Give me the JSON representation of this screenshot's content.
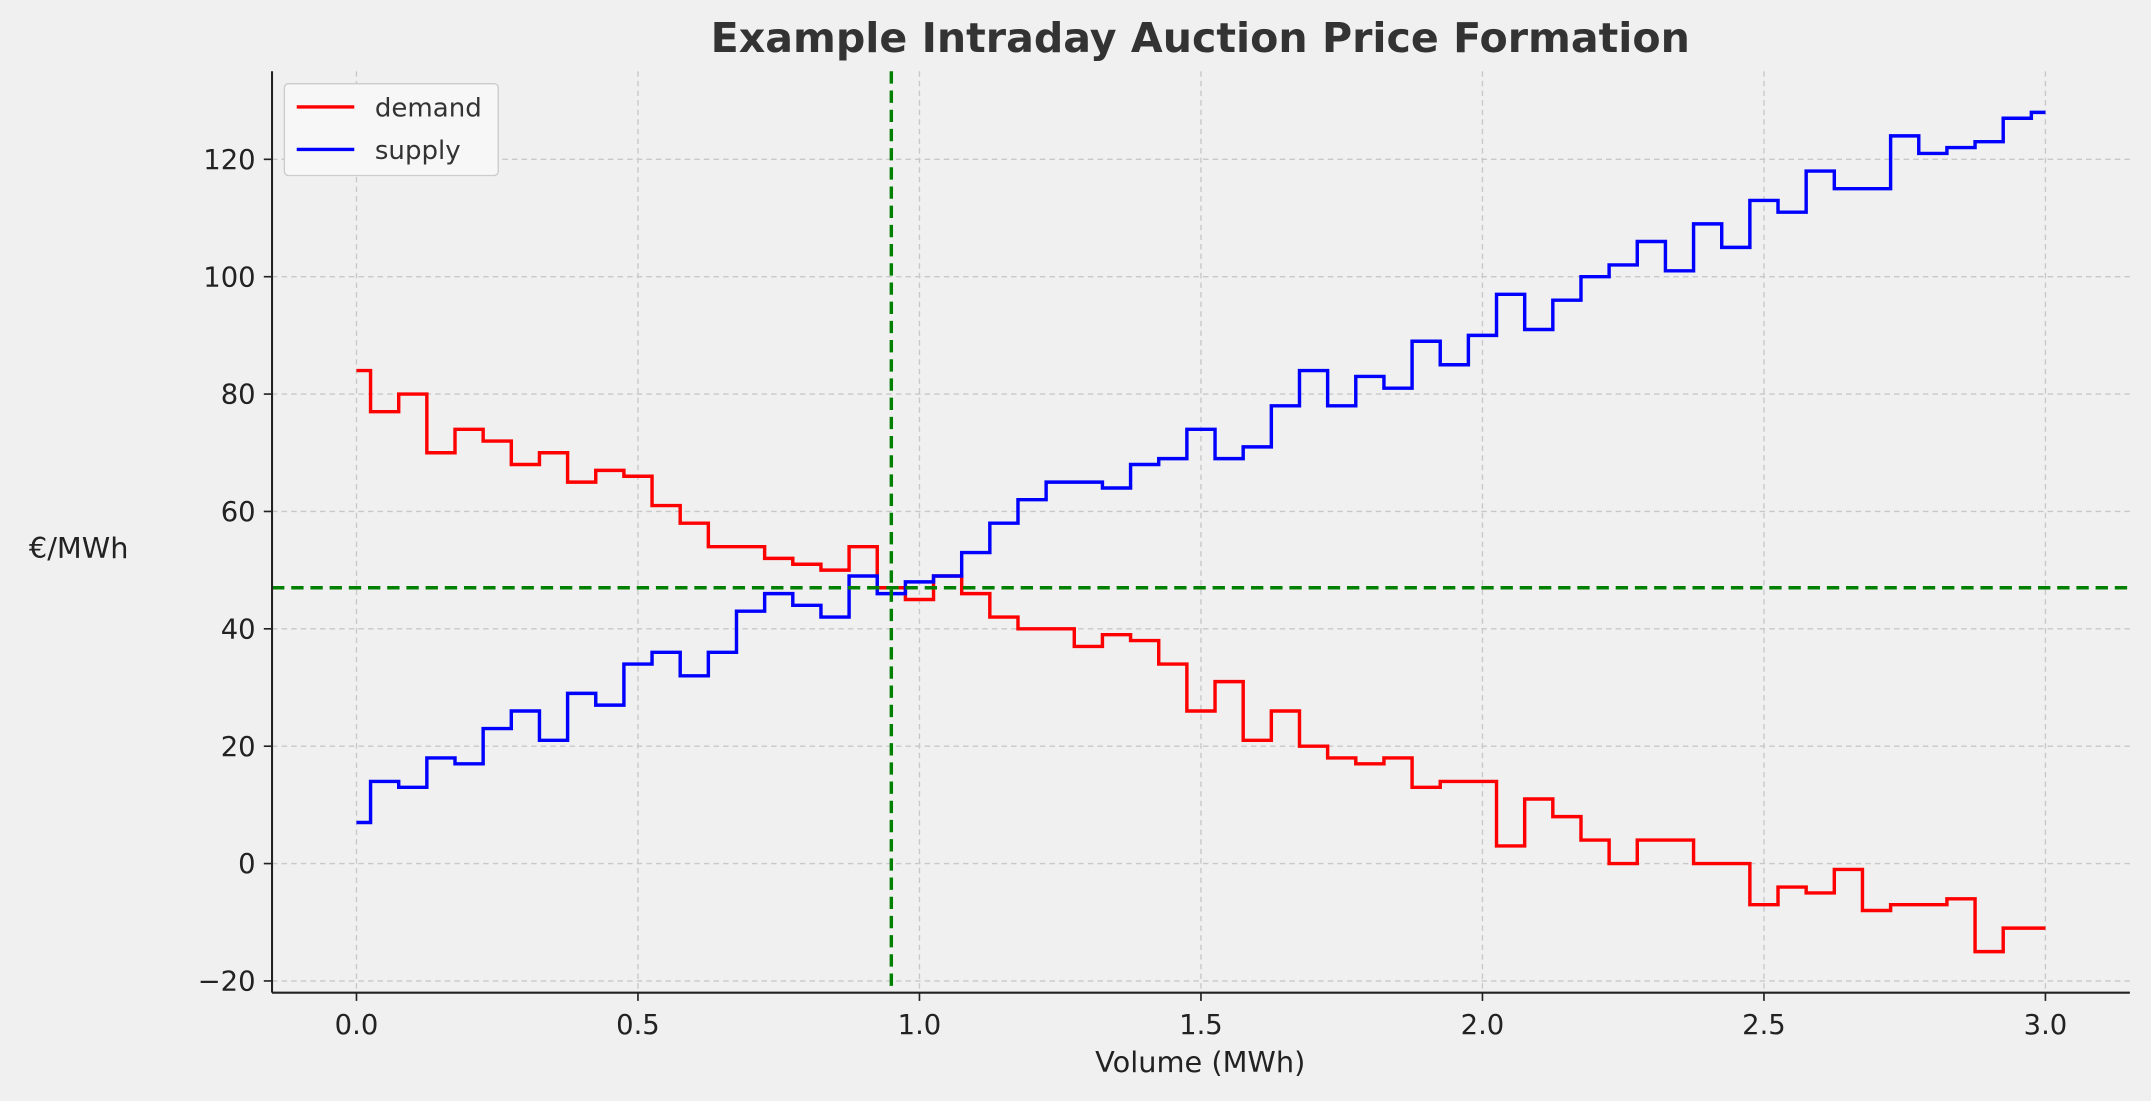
{
  "chart_data": {
    "type": "line",
    "step": "mid",
    "title": "Example Intraday Auction Price Formation",
    "xlabel": "Volume (MWh)",
    "ylabel": "€/MWh",
    "xlim": [
      -0.15,
      3.15
    ],
    "ylim": [
      -22,
      135
    ],
    "xticks": [
      0.0,
      0.5,
      1.0,
      1.5,
      2.0,
      2.5,
      3.0
    ],
    "xtick_labels": [
      "0.0",
      "0.5",
      "1.0",
      "1.5",
      "2.0",
      "2.5",
      "3.0"
    ],
    "yticks": [
      -20,
      0,
      20,
      40,
      60,
      80,
      100,
      120
    ],
    "ytick_labels": [
      "−20",
      "0",
      "20",
      "40",
      "60",
      "80",
      "100",
      "120"
    ],
    "grid": true,
    "legend_position": "top-left",
    "x_start": 0.0,
    "x_step": 0.05,
    "series": [
      {
        "name": "demand",
        "color": "#ff0000",
        "values": [
          84,
          77,
          80,
          70,
          74,
          72,
          68,
          70,
          65,
          67,
          66,
          61,
          58,
          54,
          54,
          52,
          51,
          50,
          54,
          47,
          45,
          49,
          46,
          42,
          40,
          40,
          37,
          39,
          38,
          34,
          26,
          31,
          21,
          26,
          20,
          18,
          17,
          18,
          13,
          14,
          14,
          3,
          11,
          8,
          4,
          0,
          4,
          4,
          0,
          0,
          -7,
          -4,
          -5,
          -1,
          -8,
          -7,
          -7,
          -6,
          -15,
          -11,
          -11
        ]
      },
      {
        "name": "supply",
        "color": "#0000ff",
        "values": [
          7,
          14,
          13,
          18,
          17,
          23,
          26,
          21,
          29,
          27,
          34,
          36,
          32,
          36,
          43,
          46,
          44,
          42,
          49,
          46,
          48,
          49,
          53,
          58,
          62,
          65,
          65,
          64,
          68,
          69,
          74,
          69,
          71,
          78,
          84,
          78,
          83,
          81,
          89,
          85,
          90,
          97,
          91,
          96,
          100,
          102,
          106,
          101,
          109,
          105,
          113,
          111,
          118,
          115,
          115,
          124,
          121,
          122,
          123,
          127,
          128
        ]
      }
    ],
    "equilibrium": {
      "volume": 0.95,
      "price": 47,
      "color": "#008000",
      "style": "dashed"
    }
  }
}
